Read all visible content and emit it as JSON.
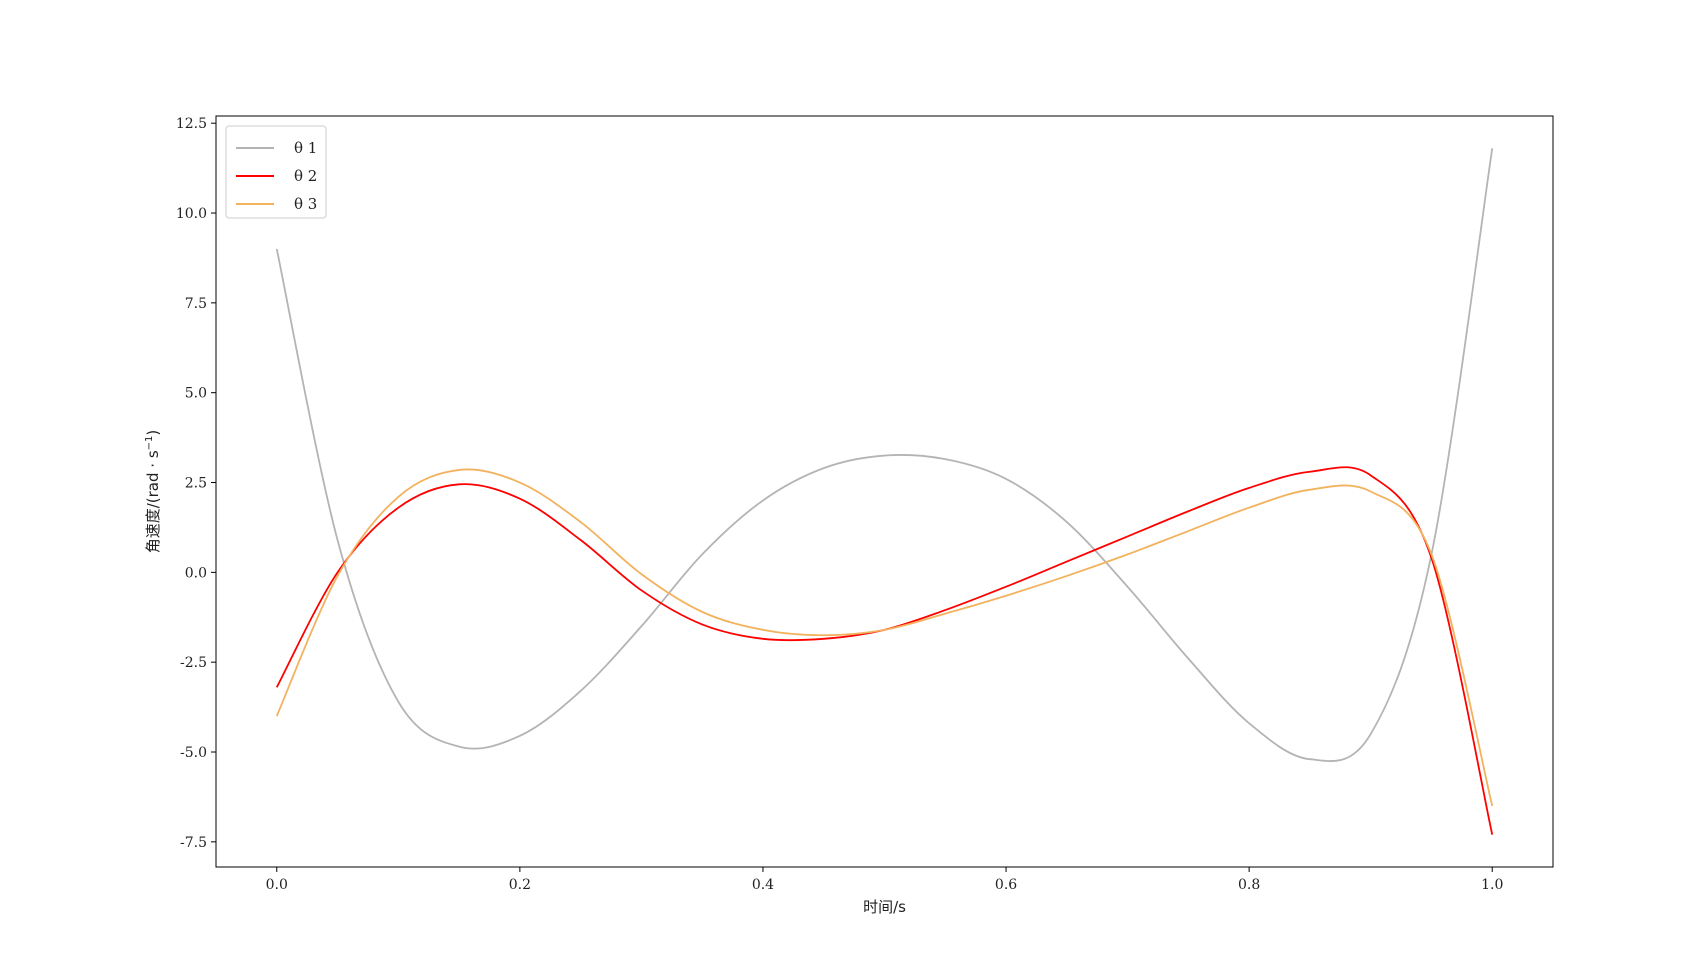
{
  "chart_data": {
    "type": "line",
    "title": "",
    "xlabel": "时间/s",
    "ylabel_prefix": "角速度/(rad · s",
    "ylabel_exp": "−1",
    "ylabel_suffix": ")",
    "xlim": [
      -0.05,
      1.05
    ],
    "ylim": [
      -8.2,
      12.7
    ],
    "xticks": [
      0.0,
      0.2,
      0.4,
      0.6,
      0.8,
      1.0
    ],
    "xtick_labels": [
      "0.0",
      "0.2",
      "0.4",
      "0.6",
      "0.8",
      "1.0"
    ],
    "yticks": [
      -7.5,
      -5.0,
      -2.5,
      0.0,
      2.5,
      5.0,
      7.5,
      10.0,
      12.5
    ],
    "ytick_labels": [
      "-7.5",
      "-5.0",
      "-2.5",
      "0.0",
      "2.5",
      "5.0",
      "7.5",
      "10.0",
      "12.5"
    ],
    "grid": false,
    "legend_position": "top-left",
    "x": [
      0.0,
      0.05,
      0.1,
      0.15,
      0.2,
      0.25,
      0.3,
      0.35,
      0.4,
      0.45,
      0.5,
      0.55,
      0.6,
      0.65,
      0.7,
      0.75,
      0.8,
      0.85,
      0.9,
      0.95,
      1.0
    ],
    "series": [
      {
        "name": "θ 1",
        "color": "#b4b4b4",
        "values": [
          9.0,
          0.9,
          -3.6,
          -4.85,
          -4.55,
          -3.3,
          -1.5,
          0.5,
          2.0,
          2.9,
          3.25,
          3.15,
          2.6,
          1.4,
          -0.4,
          -2.4,
          -4.2,
          -5.2,
          -4.5,
          0.5,
          11.8
        ]
      },
      {
        "name": "θ 2",
        "color": "#ff0000",
        "values": [
          -3.2,
          0.0,
          1.8,
          2.45,
          2.05,
          0.9,
          -0.5,
          -1.45,
          -1.85,
          -1.85,
          -1.6,
          -1.05,
          -0.4,
          0.3,
          1.0,
          1.7,
          2.35,
          2.8,
          2.7,
          0.4,
          -7.3
        ]
      },
      {
        "name": "θ 3",
        "color": "#f2b25e",
        "values": [
          -4.0,
          -0.1,
          2.1,
          2.85,
          2.5,
          1.4,
          -0.05,
          -1.1,
          -1.6,
          -1.75,
          -1.6,
          -1.15,
          -0.65,
          -0.1,
          0.5,
          1.15,
          1.8,
          2.3,
          2.25,
          0.5,
          -6.5
        ]
      }
    ]
  }
}
